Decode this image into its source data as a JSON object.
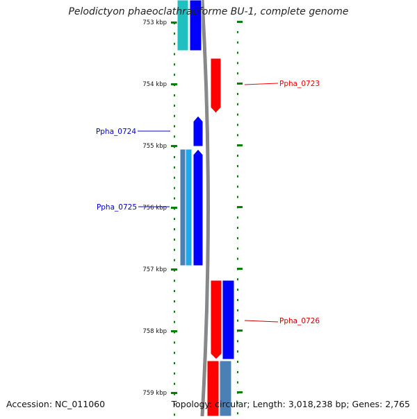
{
  "title": "Pelodictyon phaeoclathratiforme BU-1, complete genome",
  "accession": "Accession: NC_011060",
  "topology": "Topology: circular; Length: 3,018,238 bp; Genes: 2,765",
  "ruler": {
    "labels": [
      "753 kbp",
      "754 kbp",
      "755 kbp",
      "756 kbp",
      "757 kbp",
      "758 kbp",
      "759 kbp"
    ]
  },
  "genes": [
    {
      "name": "Ppha_0723",
      "color": "#ff0000"
    },
    {
      "name": "Ppha_0724",
      "color": "#0000cc"
    },
    {
      "name": "Ppha_0725",
      "color": "#0000cc"
    },
    {
      "name": "Ppha_0726",
      "color": "#cc0000"
    }
  ],
  "colors": {
    "plus_strand": "#ff0000",
    "minus_strand": "#0000ff",
    "teal": "#20c0c0",
    "steel_blue": "#4a80b4",
    "light_blue": "#20a8e8",
    "backbone": "#888888",
    "ticks": "#008000"
  }
}
